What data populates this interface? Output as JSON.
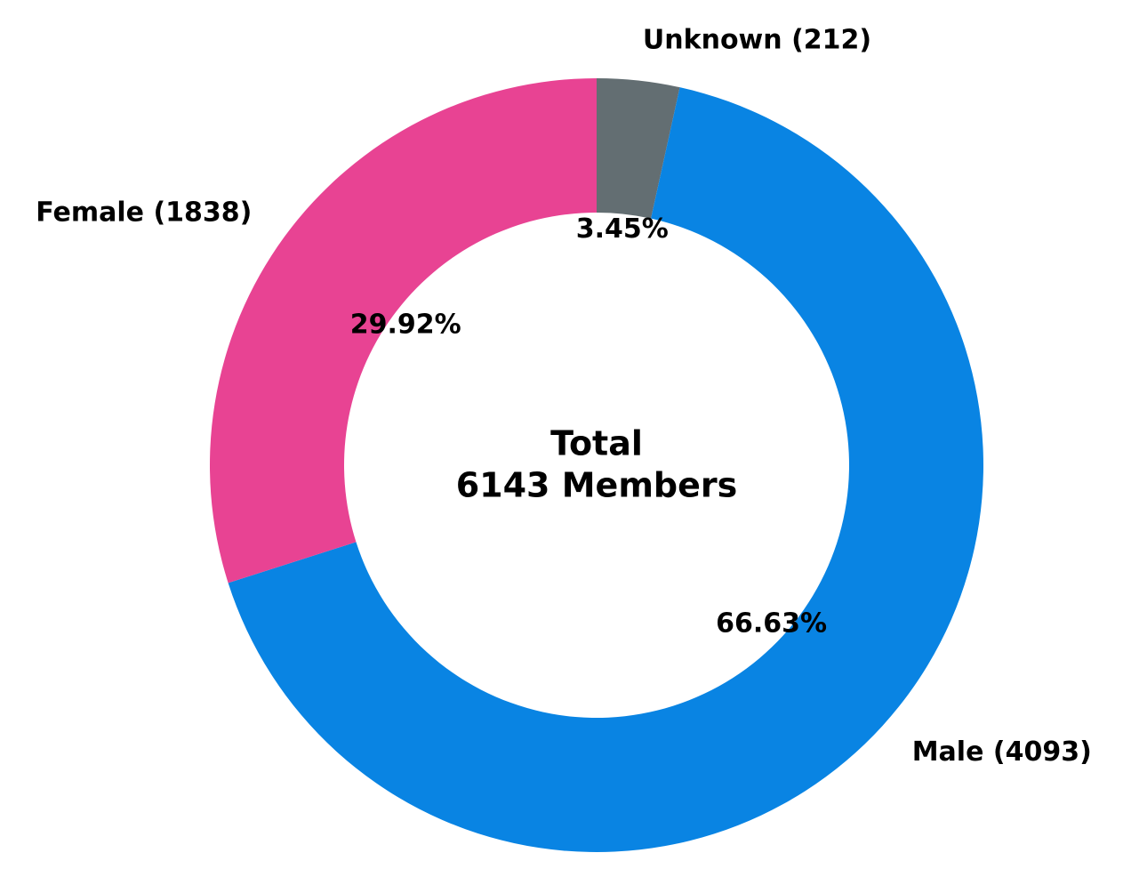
{
  "chart_data": {
    "type": "donut",
    "categories": [
      "Unknown (212)",
      "Male (4093)",
      "Female (1838)"
    ],
    "values": [
      3.45,
      66.63,
      29.92
    ],
    "value_labels": [
      "3.45%",
      "66.63%",
      "29.92%"
    ],
    "colors": [
      "#636e72",
      "#0984e3",
      "#e84393"
    ],
    "center_text": [
      "Total",
      "6143 Members"
    ]
  }
}
